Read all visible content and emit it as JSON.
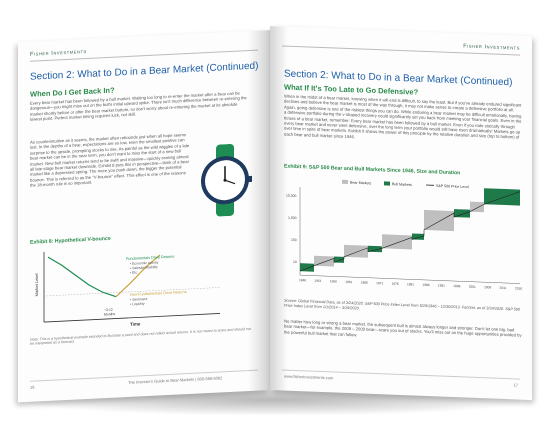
{
  "left_page": {
    "brand": "Fisher Investments",
    "section_title": "Section 2: What to Do in a Bear Market (Continued)",
    "subtitle": "When Do I Get Back In?",
    "para1": "Every bear market has been followed by a bull market. Waiting too long to re-enter the market after a bear can be dangerous—you might miss out on the bull's initial upward spike. There isn't much difference between re-entering the market shortly before or after the bear market bottom, so don't worry about re-entering the market at its absolute lowest point. Perfect market timing requires luck, not skill.",
    "para2": "As counterintuitive as it seems, the market often rebounds just when all hope seems lost. In the depths of a bear, expectations are so low, even the smallest positive can surprise to the upside, prompting stocks to rise. As painful as the wild wiggles of a late bear market can be in the near term, you don't want to miss the start of a new bull market. New bull market returns tend to be swift and massive—quickly erasing almost all late-stage bear market downside. Exhibit 8 puts this in perspective—think of a bear market like a depressed spring. The more you push down, the bigger the potential bounce. This is referred to as the \"V-bounce\" effect. This effect is one of the reasons the 18-month rule is so important.",
    "exhibit_title": "Exhibit 8: Hypothetical V-bounce",
    "chart": {
      "ylabel": "Market Level",
      "xlabel": "Time",
      "fund_label": "Fundamentals Drive Returns",
      "fund_items": [
        "• Economic activity",
        "• Sales/profitability",
        "• Etc."
      ],
      "nonfund_label": "Non-Fundamentals Drive Returns",
      "nonfund_items": [
        "• Sentiment",
        "• Liquidity"
      ],
      "interval_label": "~3-12",
      "interval_unit": "Months"
    },
    "note": "Note: This is a hypothetical example intended to illustrate a point and does not reflect actual returns. It is not meant to scare and should not be interpreted as a forecast.",
    "page_number": "16",
    "footer": "The Investor's Guide to Bear Markets  |  800-568-5082"
  },
  "right_page": {
    "brand": "Fisher Investments",
    "section_title": "Section 2: What to Do in a Bear Market (Continued)",
    "subtitle": "What If It's Too Late to Go Defensive?",
    "para1": "When in the midst of a bear market, knowing when it will end is difficult, to say the least. But if you've already endured significant declines and believe the bear market is most of the way through, it may not make sense to create a defensive portfolio at all. Again, going defensive is one of the riskiest things you can do. While enduring a bear market may be difficult emotionally, having a defensive portfolio during the v-shaped recovery could significantly set you back from meeting your financial goals. Even in the throes of a bear market, remember: Every bear market has been followed by a bull market. Even if you rode stoically through every bear market and never went defensive, over the long term your portfolio would still have risen dramatically! Markets go up over time in spite of bear markets. Exhibit 9 shows the power of this principle by the relative duration and size (top to bottom) of each bear and bull market since 1946.",
    "exhibit_title": "Exhibit 9: S&P 500 Bear and Bull Markets Since 1946, Size and Duration",
    "source": "Source: Global Financial Data, as of 3/24/2020. S&P 500 Price Index Level from 5/29/1946 – 12/30/2013. FactSet, as of 3/24/2020. S&P 500 Price Index Level from 1/1/2014 – 3/19/2020.",
    "para2": "No matter how long or strong a bear market, the subsequent bull is almost always longer and stronger. Don't let one big, bad bear market—for example, the 2008 – 2009 bear—scare you out of stocks. You'll miss out on the huge opportunities provided by the powerful bull market that can follow.",
    "page_number": "17",
    "footer": "www.fisherinvestments.com"
  },
  "chart_data": [
    {
      "type": "line",
      "title": "Exhibit 8: Hypothetical V-bounce",
      "xlabel": "Time",
      "ylabel": "Market Level",
      "series": [
        {
          "name": "Fundamentals Drive Returns",
          "values": [
            0.95,
            0.82,
            0.66,
            0.5,
            0.38,
            0.3
          ]
        },
        {
          "name": "Non-Fundamentals Drive Returns",
          "values": [
            0.3,
            0.5,
            0.72,
            0.9
          ]
        }
      ]
    },
    {
      "type": "bar",
      "title": "Exhibit 9: S&P 500 Bear and Bull Markets Since 1946, Size and Duration",
      "legend": [
        "Bear Markets",
        "Bull Markets",
        "S&P 500 Price Level"
      ],
      "ytick_labels": [
        "10,000",
        "1,000",
        "100",
        "10"
      ],
      "xtick_labels": [
        "1946",
        "1951",
        "1956",
        "1961",
        "1966",
        "1971",
        "1976",
        "1981",
        "1986",
        "1991",
        "1996",
        "2001",
        "2006",
        "2011",
        "2016"
      ],
      "colors": {
        "bear": "#bfbfbf",
        "bull": "#1f7a4a",
        "line": "#222222"
      }
    }
  ]
}
